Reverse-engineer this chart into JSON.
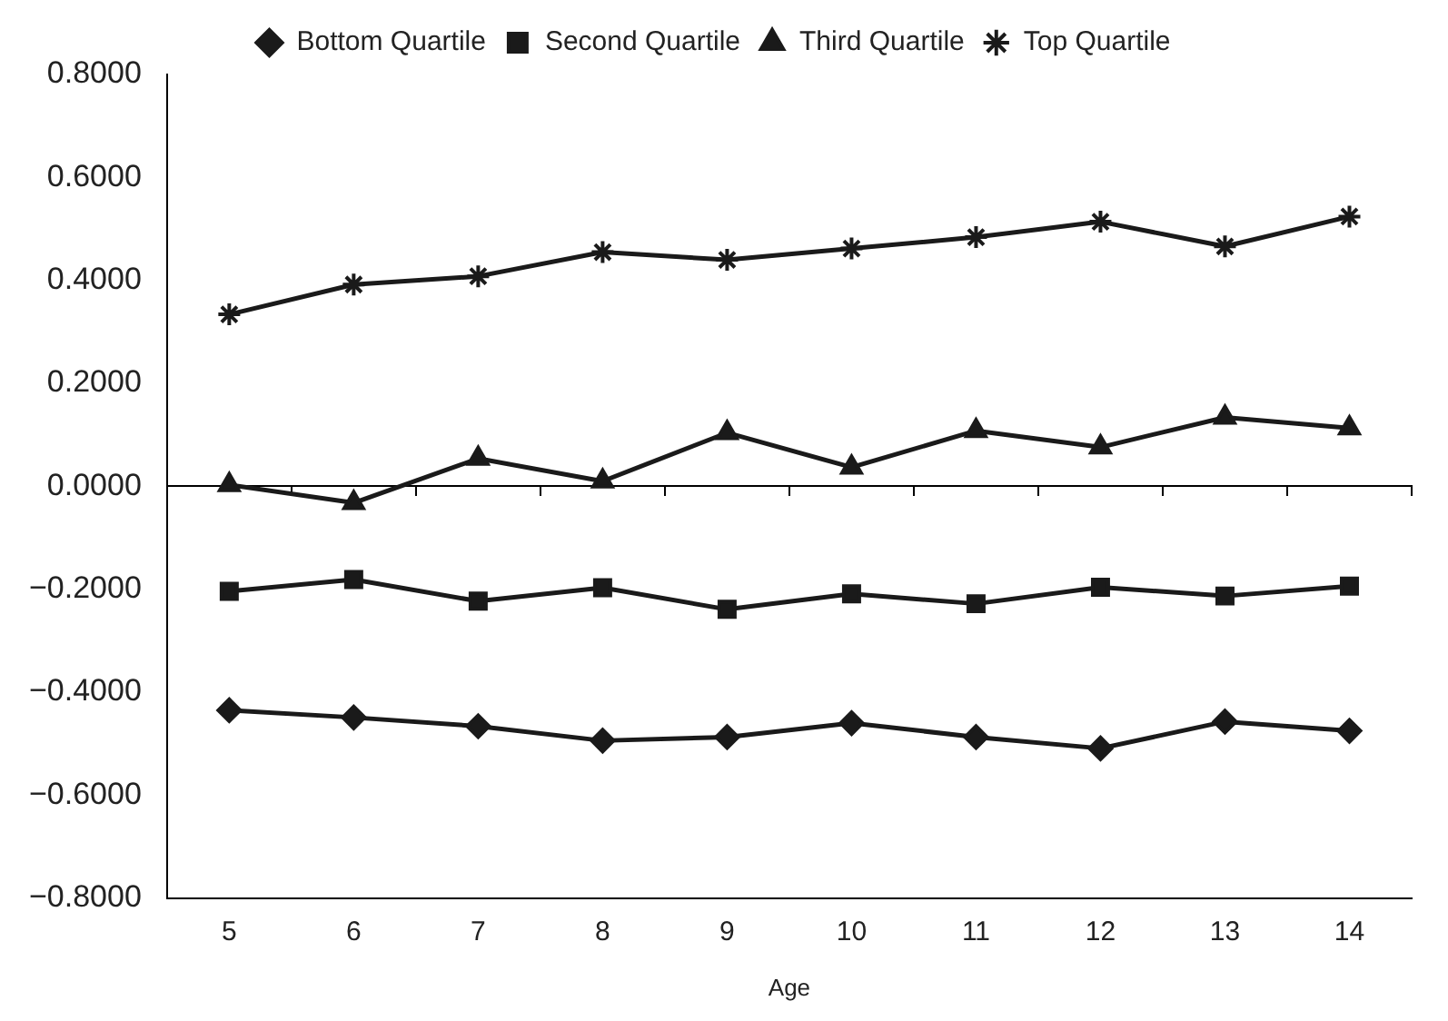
{
  "chart_data": {
    "type": "line",
    "xlabel": "Age",
    "categories": [
      "5",
      "6",
      "7",
      "8",
      "9",
      "10",
      "11",
      "12",
      "13",
      "14"
    ],
    "series": [
      {
        "name": "Bottom Quartile",
        "color": "#1a1a1a",
        "marker": "diamond",
        "values": [
          -0.435,
          -0.449,
          -0.466,
          -0.494,
          -0.487,
          -0.46,
          -0.487,
          -0.509,
          -0.457,
          -0.475
        ]
      },
      {
        "name": "Second Quartile",
        "color": "#1a1a1a",
        "marker": "square",
        "values": [
          -0.204,
          -0.181,
          -0.223,
          -0.197,
          -0.239,
          -0.209,
          -0.228,
          -0.196,
          -0.213,
          -0.194
        ]
      },
      {
        "name": "Third Quartile",
        "color": "#1a1a1a",
        "marker": "triangle",
        "values": [
          0.003,
          -0.032,
          0.054,
          0.01,
          0.104,
          0.037,
          0.108,
          0.076,
          0.134,
          0.113
        ]
      },
      {
        "name": "Top Quartile",
        "color": "#1a1a1a",
        "marker": "cross",
        "values": [
          0.334,
          0.392,
          0.408,
          0.455,
          0.44,
          0.462,
          0.484,
          0.514,
          0.466,
          0.524
        ]
      }
    ],
    "ylim": [
      -0.8,
      0.8
    ],
    "yticks": [
      {
        "value": -0.8,
        "label": "−0.8000"
      },
      {
        "value": -0.6,
        "label": "−0.6000"
      },
      {
        "value": -0.4,
        "label": "−0.4000"
      },
      {
        "value": -0.2,
        "label": "−0.2000"
      },
      {
        "value": 0,
        "label": "0.0000"
      },
      {
        "value": 0.2,
        "label": "0.2000"
      },
      {
        "value": 0.4,
        "label": "0.4000"
      },
      {
        "value": 0.6,
        "label": "0.6000"
      },
      {
        "value": 0.8,
        "label": "0.8000"
      }
    ],
    "legend": "top",
    "line_style": "solid"
  }
}
